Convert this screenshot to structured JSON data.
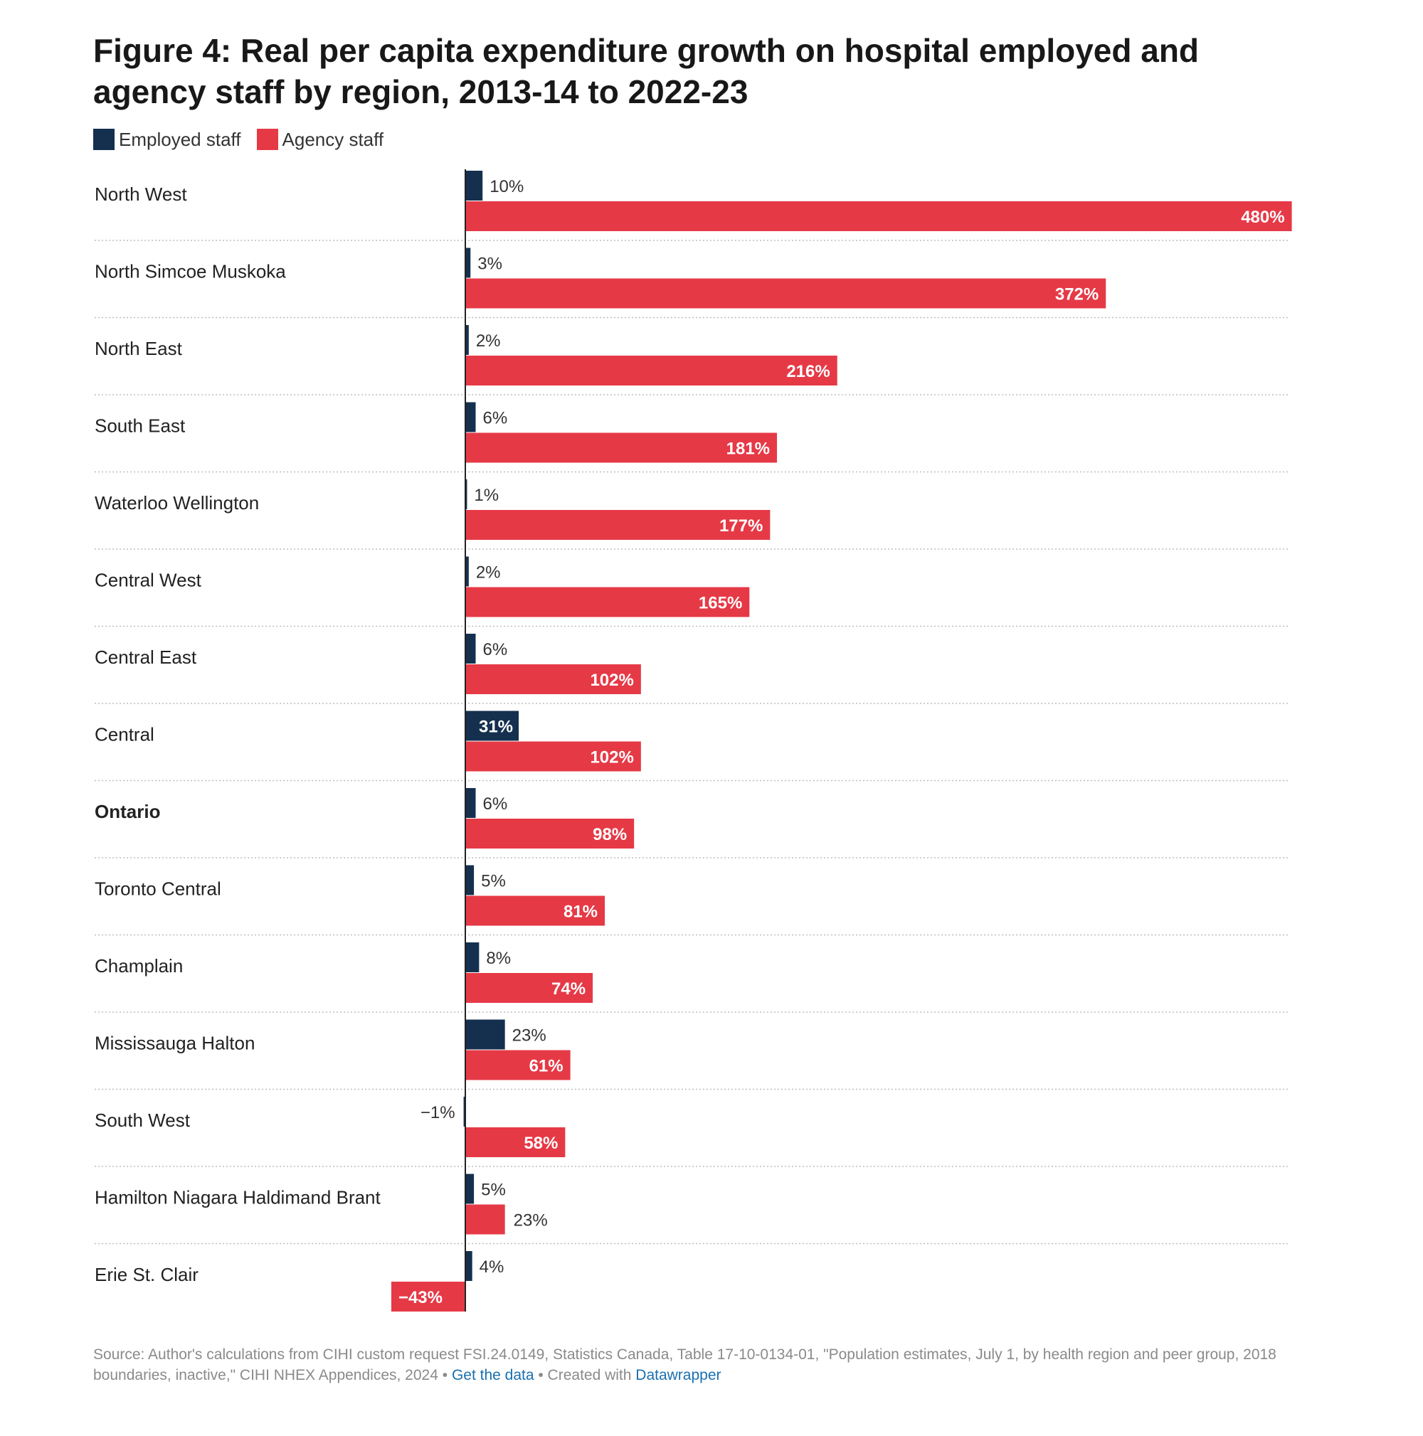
{
  "title": "Figure 4: Real per capita expenditure growth on hospital employed and agency staff by region, 2013-14 to 2022-23",
  "legend": [
    {
      "label": "Employed staff",
      "color": "#15304f"
    },
    {
      "label": "Agency staff",
      "color": "#e63946"
    }
  ],
  "footer": {
    "source": "Source: Author's calculations from CIHI custom request FSI.24.0149, Statistics Canada, Table 17-10-0134-01, \"Population estimates, July 1, by health region and peer group, 2018 boundaries, inactive,\" CIHI NHEX Appendices, 2024",
    "sep1": " • ",
    "get_data": "Get the data",
    "sep2": " • Created with ",
    "datawrapper": "Datawrapper"
  },
  "chart_data": {
    "type": "bar",
    "orientation": "horizontal",
    "title": "Figure 4: Real per capita expenditure growth on hospital employed and agency staff by region, 2013-14 to 2022-23",
    "categories": [
      "North West",
      "North Simcoe Muskoka",
      "North East",
      "South East",
      "Waterloo Wellington",
      "Central West",
      "Central East",
      "Central",
      "Ontario",
      "Toronto Central",
      "Champlain",
      "Mississauga Halton",
      "South West",
      "Hamilton Niagara Haldimand Brant",
      "Erie St. Clair"
    ],
    "bold_categories": [
      "Ontario"
    ],
    "series": [
      {
        "name": "Employed staff",
        "color": "#15304f",
        "values": [
          10,
          3,
          2,
          6,
          1,
          2,
          6,
          31,
          6,
          5,
          8,
          23,
          -1,
          5,
          4
        ],
        "labels": [
          "10%",
          "3%",
          "2%",
          "6%",
          "1%",
          "2%",
          "6%",
          "31%",
          "6%",
          "5%",
          "8%",
          "23%",
          "−1%",
          "5%",
          "4%"
        ]
      },
      {
        "name": "Agency staff",
        "color": "#e63946",
        "values": [
          480,
          372,
          216,
          181,
          177,
          165,
          102,
          102,
          98,
          81,
          74,
          61,
          58,
          23,
          -43
        ],
        "labels": [
          "480%",
          "372%",
          "216%",
          "181%",
          "177%",
          "165%",
          "102%",
          "102%",
          "98%",
          "81%",
          "74%",
          "61%",
          "58%",
          "23%",
          "−43%"
        ]
      }
    ],
    "xlim": [
      -43,
      480
    ],
    "unit": "%",
    "grid": false
  }
}
